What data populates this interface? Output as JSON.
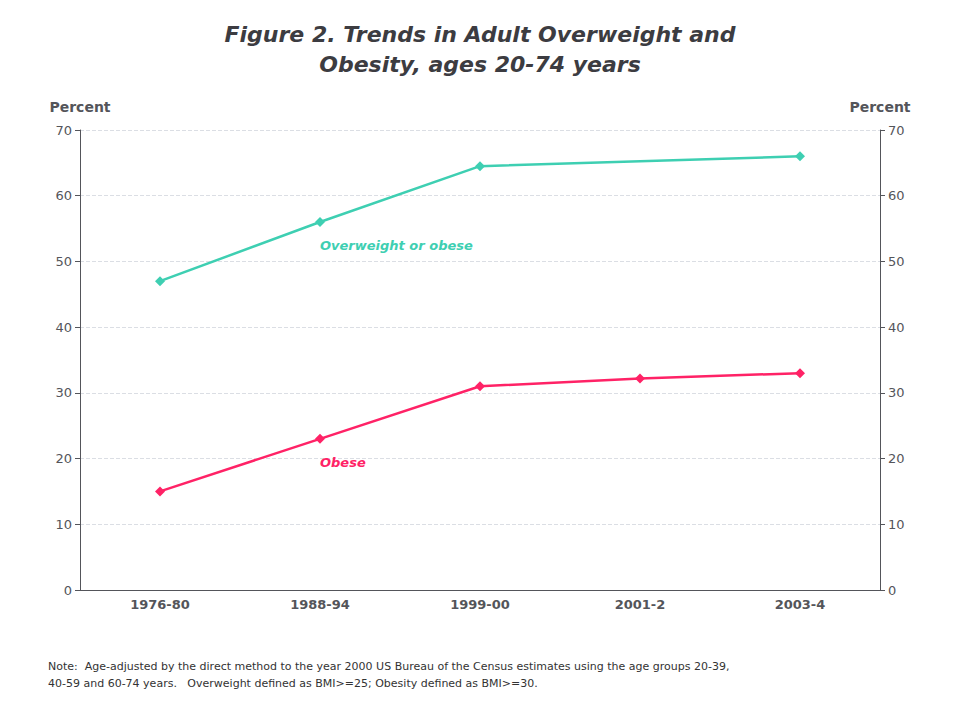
{
  "chart_data": {
    "type": "line",
    "title": "Figure 2. Trends in Adult Overweight and\nObesity, ages 20-74 years",
    "categories": [
      "1976-80",
      "1988-94",
      "1999-00",
      "2001-2",
      "2003-4"
    ],
    "series": [
      {
        "name": "Overweight or obese",
        "color": "#3ecfb2",
        "x": [
          "1976-80",
          "1988-94",
          "1999-00",
          "2003-4"
        ],
        "values": [
          47.0,
          56.0,
          64.5,
          66.0
        ]
      },
      {
        "name": "Obese",
        "color": "#ff2266",
        "x": [
          "1976-80",
          "1988-94",
          "1999-00",
          "2001-2",
          "2003-4"
        ],
        "values": [
          15.0,
          23.0,
          31.0,
          32.2,
          33.0
        ]
      }
    ],
    "ylabel": "Percent",
    "y2label": "Percent",
    "ylim": [
      0,
      70
    ],
    "yticks": [
      0,
      10,
      20,
      30,
      40,
      50,
      60,
      70
    ],
    "y2lim": [
      0,
      70
    ],
    "y2ticks": [
      0,
      10,
      20,
      30,
      40,
      50,
      60,
      70
    ],
    "grid": true,
    "marker": "diamond",
    "annotations": [
      "Note:  Age-adjusted by the direct method to the year 2000 US Bureau of the Census estimates using the age groups 20-39,\n40-59 and 60-74 years.   Overweight defined as BMI>=25; Obesity defined as BMI>=30."
    ]
  }
}
